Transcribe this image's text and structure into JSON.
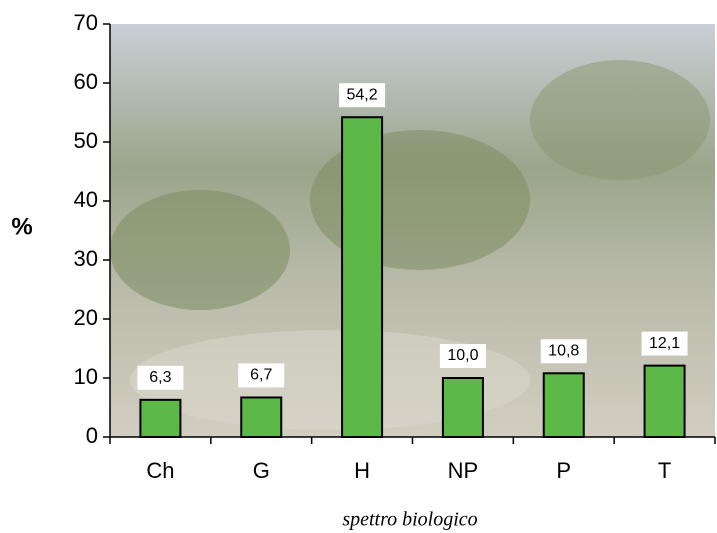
{
  "chart_data": {
    "type": "bar",
    "categories": [
      "Ch",
      "G",
      "H",
      "NP",
      "P",
      "T"
    ],
    "values": [
      6.3,
      6.7,
      54.2,
      10.0,
      10.8,
      12.1
    ],
    "value_labels": [
      "6,3",
      "6,7",
      "54,2",
      "10,0",
      "10,8",
      "12,1"
    ],
    "color": "#5cb947",
    "y_label": "%",
    "x_label": "spettro biologico",
    "ylim": [
      0,
      70
    ],
    "yticks": [
      0,
      10,
      20,
      30,
      40,
      50,
      60,
      70
    ]
  }
}
